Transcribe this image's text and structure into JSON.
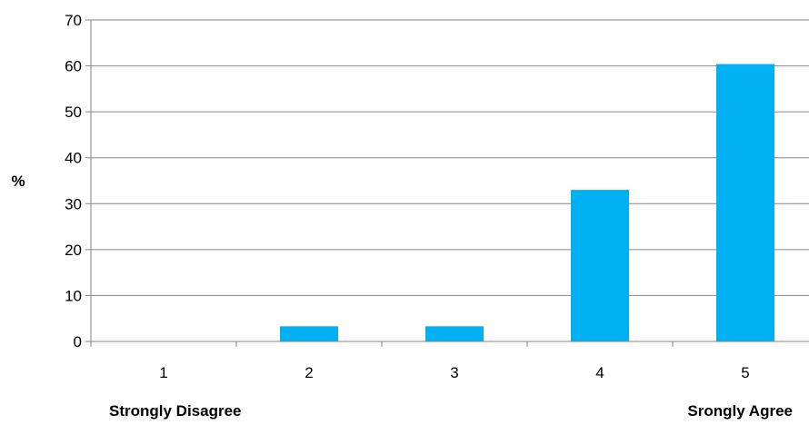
{
  "chart_data": {
    "type": "bar",
    "categories": [
      "1",
      "2",
      "3",
      "4",
      "5"
    ],
    "values": [
      0,
      3.3,
      3.3,
      33,
      60.4
    ],
    "ylabel": "%",
    "ylim": [
      0,
      70
    ],
    "yticks": [
      0,
      10,
      20,
      30,
      40,
      50,
      60,
      70
    ],
    "grid": true,
    "legend": "none",
    "bar_color": "#00B0F0",
    "scale_labels": {
      "low": "Strongly Disagree",
      "high": "Srongly Agree"
    }
  }
}
